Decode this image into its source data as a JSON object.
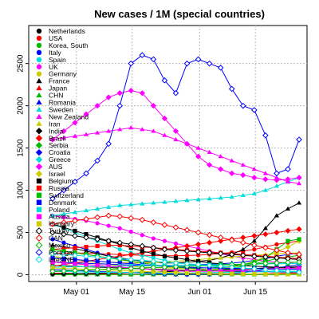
{
  "chart_data": {
    "type": "line",
    "title": "New cases / 1M (special countries)",
    "xlabel": "",
    "ylabel": "",
    "x_range": [
      "2020-04-19",
      "2020-06-28"
    ],
    "ylim": [
      -80,
      2950
    ],
    "x_ticks": [
      {
        "date": "2020-05-01",
        "label": "May 01"
      },
      {
        "date": "2020-05-15",
        "label": "May 15"
      },
      {
        "date": "2020-06-01",
        "label": "Jun 01"
      },
      {
        "date": "2020-06-15",
        "label": "Jun 15"
      }
    ],
    "y_ticks": [
      0,
      500,
      1000,
      1500,
      2000,
      2500
    ],
    "grid": true,
    "legend_position": "top-left",
    "series": [
      {
        "name": "Netherlands",
        "color": "#000000",
        "marker": "circle",
        "start": "2020-04-25",
        "end": "2020-06-26",
        "values": [
          110,
          105,
          100,
          95,
          90,
          85,
          80,
          75,
          70,
          65,
          60,
          55,
          50,
          48,
          46,
          44,
          42,
          40,
          38,
          36,
          34,
          32,
          30
        ]
      },
      {
        "name": "USA",
        "color": "#ff0000",
        "marker": "circle",
        "start": "2020-04-25",
        "end": "2020-06-26",
        "values": [
          250,
          255,
          260,
          255,
          250,
          245,
          240,
          235,
          230,
          228,
          225,
          225,
          228,
          232,
          240,
          250,
          265,
          280,
          300,
          330,
          360,
          380,
          400
        ]
      },
      {
        "name": "Korea, South",
        "color": "#00bb00",
        "marker": "circle",
        "start": "2020-04-25",
        "end": "2020-06-26",
        "values": [
          5,
          5,
          4,
          4,
          3,
          3,
          3,
          4,
          5,
          6,
          8,
          10,
          10,
          9,
          8,
          8,
          9,
          10,
          10,
          9,
          9,
          8,
          8
        ]
      },
      {
        "name": "Italy",
        "color": "#0000ff",
        "marker": "circle",
        "start": "2020-04-25",
        "end": "2020-06-26",
        "values": [
          420,
          380,
          340,
          300,
          260,
          220,
          190,
          160,
          140,
          120,
          100,
          90,
          80,
          70,
          60,
          55,
          50,
          45,
          40,
          38,
          36,
          35,
          34
        ]
      },
      {
        "name": "Spain",
        "color": "#00dddd",
        "marker": "circle",
        "start": "2020-04-25",
        "end": "2020-06-26",
        "values": [
          600,
          550,
          500,
          450,
          400,
          350,
          300,
          260,
          230,
          200,
          170,
          150,
          130,
          110,
          100,
          90,
          80,
          70,
          65,
          60,
          60,
          62,
          65
        ]
      },
      {
        "name": "UK",
        "color": "#ff00ff",
        "marker": "circle",
        "start": "2020-04-25",
        "end": "2020-06-26",
        "values": [
          700,
          680,
          660,
          640,
          610,
          580,
          550,
          510,
          470,
          430,
          400,
          370,
          340,
          310,
          280,
          250,
          220,
          200,
          180,
          160,
          150,
          140,
          130
        ]
      },
      {
        "name": "Germany",
        "color": "#cccc00",
        "marker": "circle",
        "start": "2020-04-25",
        "end": "2020-06-26",
        "values": [
          220,
          200,
          180,
          160,
          140,
          120,
          110,
          100,
          90,
          85,
          80,
          75,
          70,
          65,
          60,
          60,
          60,
          65,
          70,
          75,
          80,
          78,
          75
        ]
      },
      {
        "name": "France",
        "color": "#000000",
        "marker": "triangle",
        "start": "2020-04-25",
        "end": "2020-06-26",
        "values": [
          350,
          330,
          310,
          280,
          250,
          220,
          200,
          180,
          160,
          150,
          140,
          140,
          150,
          160,
          170,
          200,
          240,
          300,
          400,
          550,
          700,
          780,
          850
        ]
      },
      {
        "name": "Japan",
        "color": "#ff0000",
        "marker": "triangle",
        "start": "2020-04-25",
        "end": "2020-06-26",
        "values": [
          20,
          18,
          15,
          12,
          10,
          8,
          6,
          5,
          4,
          3,
          3,
          3,
          3,
          4,
          5,
          6,
          7,
          8,
          10,
          12,
          15,
          18,
          20
        ]
      },
      {
        "name": "CHN",
        "color": "#00bb00",
        "marker": "triangle",
        "start": "2020-04-25",
        "end": "2020-06-26",
        "values": [
          2,
          2,
          2,
          1,
          1,
          1,
          1,
          1,
          1,
          1,
          1,
          1,
          1,
          1,
          1,
          2,
          2,
          2,
          1,
          1,
          1,
          1,
          1
        ]
      },
      {
        "name": "Romania",
        "color": "#0000ff",
        "marker": "triangle",
        "start": "2020-04-25",
        "end": "2020-06-26",
        "values": [
          150,
          145,
          140,
          135,
          130,
          125,
          120,
          115,
          110,
          110,
          110,
          110,
          115,
          120,
          125,
          130,
          140,
          150,
          170,
          190,
          220,
          240,
          260
        ]
      },
      {
        "name": "Sweden",
        "color": "#00dddd",
        "marker": "triangle",
        "start": "2020-04-25",
        "end": "2020-06-26",
        "values": [
          700,
          720,
          740,
          760,
          780,
          800,
          820,
          830,
          840,
          850,
          860,
          870,
          880,
          890,
          900,
          910,
          920,
          940,
          960,
          1000,
          1050,
          1100,
          1150
        ]
      },
      {
        "name": "New Zealand",
        "color": "#ff00ff",
        "marker": "triangle",
        "start": "2020-04-25",
        "end": "2020-06-26",
        "values": [
          1600,
          1620,
          1640,
          1660,
          1680,
          1700,
          1720,
          1740,
          1720,
          1700,
          1650,
          1600,
          1550,
          1500,
          1450,
          1400,
          1350,
          1300,
          1250,
          1200,
          1150,
          1100,
          1080
        ]
      },
      {
        "name": "Iran",
        "color": "#cccc00",
        "marker": "triangle",
        "start": "2020-04-25",
        "end": "2020-06-26",
        "values": [
          200,
          190,
          180,
          170,
          160,
          150,
          145,
          140,
          140,
          145,
          150,
          160,
          170,
          180,
          190,
          200,
          210,
          220,
          230,
          240,
          250,
          255,
          260
        ]
      },
      {
        "name": "India",
        "color": "#000000",
        "marker": "diamond",
        "start": "2020-04-25",
        "end": "2020-06-26",
        "values": [
          10,
          12,
          14,
          16,
          18,
          20,
          22,
          25,
          28,
          32,
          36,
          40,
          45,
          50,
          55,
          60,
          65,
          70,
          75,
          80,
          85,
          90,
          95
        ]
      },
      {
        "name": "Brazil",
        "color": "#ff0000",
        "marker": "diamond",
        "start": "2020-04-25",
        "end": "2020-06-26",
        "values": [
          100,
          120,
          140,
          160,
          180,
          200,
          220,
          240,
          260,
          280,
          300,
          320,
          340,
          360,
          380,
          400,
          420,
          440,
          460,
          480,
          500,
          520,
          540
        ]
      },
      {
        "name": "Serbia",
        "color": "#00bb00",
        "marker": "diamond",
        "start": "2020-04-25",
        "end": "2020-06-26",
        "values": [
          150,
          140,
          130,
          120,
          110,
          100,
          90,
          80,
          70,
          60,
          50,
          45,
          40,
          45,
          50,
          60,
          80,
          100,
          130,
          160,
          190,
          210,
          230
        ]
      },
      {
        "name": "Croatia",
        "color": "#0000ff",
        "marker": "diamond",
        "start": "2020-04-25",
        "end": "2020-06-26",
        "values": [
          60,
          55,
          50,
          45,
          40,
          35,
          30,
          25,
          20,
          15,
          10,
          8,
          6,
          6,
          8,
          10,
          15,
          25,
          40,
          60,
          80,
          100,
          120
        ]
      },
      {
        "name": "Greece",
        "color": "#00dddd",
        "marker": "diamond",
        "start": "2020-04-25",
        "end": "2020-06-26",
        "values": [
          40,
          38,
          36,
          34,
          32,
          30,
          28,
          26,
          24,
          22,
          20,
          20,
          22,
          24,
          26,
          28,
          30,
          32,
          34,
          36,
          38,
          40,
          42
        ]
      },
      {
        "name": "AUS",
        "color": "#ff00ff",
        "marker": "diamond",
        "start": "2020-04-25",
        "end": "2020-06-26",
        "values": [
          1600,
          1700,
          1800,
          1900,
          2000,
          2100,
          2150,
          2180,
          2150,
          2000,
          1850,
          1700,
          1550,
          1400,
          1300,
          1250,
          1200,
          1180,
          1150,
          1130,
          1120,
          1130,
          1150
        ]
      },
      {
        "name": "Israel",
        "color": "#cccc00",
        "marker": "diamond",
        "start": "2020-04-25",
        "end": "2020-06-26",
        "values": [
          300,
          280,
          260,
          240,
          220,
          200,
          180,
          160,
          140,
          120,
          100,
          80,
          70,
          60,
          60,
          70,
          90,
          120,
          160,
          210,
          270,
          330,
          400
        ]
      },
      {
        "name": "Belgium",
        "color": "#000000",
        "marker": "square",
        "start": "2020-04-25",
        "end": "2020-06-26",
        "values": [
          600,
          560,
          520,
          480,
          440,
          400,
          360,
          320,
          280,
          250,
          220,
          200,
          180,
          160,
          140,
          130,
          120,
          110,
          100,
          95,
          90,
          85,
          80
        ]
      },
      {
        "name": "Russia",
        "color": "#ff0000",
        "marker": "square",
        "start": "2020-04-25",
        "end": "2020-06-26",
        "values": [
          300,
          310,
          320,
          330,
          340,
          350,
          350,
          340,
          330,
          320,
          310,
          300,
          290,
          280,
          270,
          260,
          250,
          240,
          230,
          220,
          210,
          200,
          190
        ]
      },
      {
        "name": "Switzerland",
        "color": "#00bb00",
        "marker": "square",
        "start": "2020-04-25",
        "end": "2020-06-26",
        "values": [
          300,
          280,
          260,
          240,
          220,
          200,
          180,
          160,
          140,
          120,
          100,
          90,
          80,
          80,
          80,
          90,
          100,
          120,
          150,
          200,
          300,
          400,
          420
        ]
      },
      {
        "name": "Denmark",
        "color": "#0000ff",
        "marker": "square",
        "start": "2020-04-25",
        "end": "2020-06-26",
        "values": [
          200,
          190,
          180,
          170,
          160,
          150,
          140,
          130,
          120,
          110,
          100,
          95,
          90,
          85,
          80,
          78,
          76,
          74,
          72,
          70,
          68,
          66,
          64
        ]
      },
      {
        "name": "Poland",
        "color": "#00dddd",
        "marker": "square",
        "start": "2020-04-25",
        "end": "2020-06-26",
        "values": [
          90,
          92,
          94,
          96,
          98,
          100,
          102,
          104,
          106,
          108,
          110,
          112,
          114,
          116,
          118,
          120,
          122,
          124,
          126,
          128,
          130,
          132,
          134
        ]
      },
      {
        "name": "Austria",
        "color": "#ff00ff",
        "marker": "square",
        "start": "2020-04-25",
        "end": "2020-06-26",
        "values": [
          150,
          140,
          130,
          120,
          110,
          100,
          90,
          80,
          70,
          60,
          50,
          45,
          40,
          40,
          40,
          45,
          50,
          55,
          60,
          65,
          70,
          75,
          80
        ]
      },
      {
        "name": "Hungary",
        "color": "#cccc00",
        "marker": "square",
        "start": "2020-04-25",
        "end": "2020-06-26",
        "values": [
          80,
          75,
          70,
          65,
          60,
          55,
          50,
          45,
          40,
          35,
          30,
          25,
          20,
          18,
          16,
          14,
          12,
          10,
          9,
          8,
          7,
          6,
          5
        ]
      },
      {
        "name": "Turkey",
        "color": "#000000",
        "marker": "open-diamond",
        "start": "2020-04-25",
        "end": "2020-06-26",
        "values": [
          500,
          480,
          460,
          440,
          420,
          400,
          380,
          360,
          340,
          320,
          300,
          290,
          280,
          270,
          260,
          250,
          240,
          230,
          220,
          210,
          200,
          190,
          180
        ]
      },
      {
        "name": "CAN",
        "color": "#ff0000",
        "marker": "open-diamond",
        "start": "2020-04-25",
        "end": "2020-06-26",
        "values": [
          600,
          620,
          640,
          660,
          680,
          700,
          690,
          670,
          650,
          620,
          590,
          560,
          530,
          500,
          470,
          440,
          410,
          380,
          350,
          320,
          290,
          260,
          240
        ]
      },
      {
        "name": "Mexico",
        "color": "#00bb00",
        "marker": "open-diamond",
        "start": "2020-04-25",
        "end": "2020-06-26",
        "values": [
          40,
          45,
          50,
          55,
          60,
          65,
          70,
          75,
          80,
          85,
          90,
          95,
          100,
          105,
          110,
          115,
          120,
          125,
          130,
          135,
          140,
          145,
          150
        ]
      },
      {
        "name": "Portugal",
        "color": "#0000ff",
        "marker": "open-diamond",
        "start": "2020-04-25",
        "end": "2020-06-26",
        "values": [
          900,
          1000,
          1100,
          1200,
          1350,
          1550,
          2000,
          2500,
          2600,
          2550,
          2300,
          2150,
          2500,
          2550,
          2500,
          2450,
          2200,
          2000,
          1950,
          1650,
          1200,
          1250,
          1600
        ]
      },
      {
        "name": "latestNE",
        "color": "#00dddd",
        "marker": "open-diamond",
        "start": "2020-04-25",
        "end": "2020-06-26",
        "values": [
          250,
          240,
          230,
          220,
          210,
          200,
          190,
          180,
          170,
          160,
          150,
          140,
          130,
          120,
          110,
          100,
          90,
          80,
          70,
          60,
          50,
          40,
          30
        ]
      }
    ]
  }
}
